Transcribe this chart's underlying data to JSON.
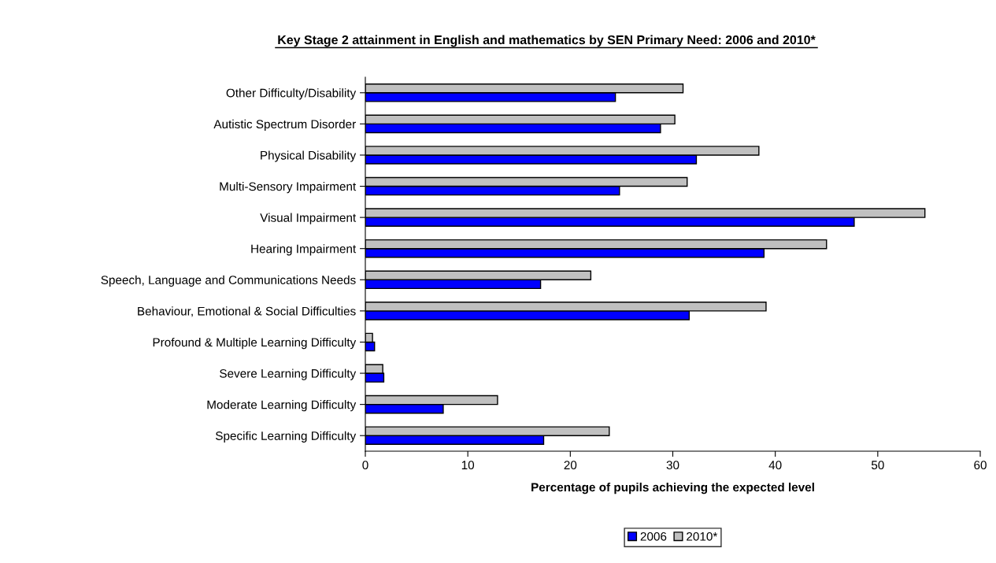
{
  "chart_data": {
    "type": "bar",
    "orientation": "horizontal",
    "title": "Key Stage 2 attainment in English and mathematics by SEN Primary Need: 2006 and 2010*",
    "xlabel": "Percentage of pupils achieving the expected level",
    "categories": [
      "Other Difficulty/Disability",
      "Autistic Spectrum Disorder",
      "Physical Disability",
      "Multi-Sensory Impairment",
      "Visual Impairment",
      "Hearing Impairment",
      "Speech, Language and Communications Needs",
      "Behaviour, Emotional & Social Difficulties",
      "Profound & Multiple Learning Difficulty",
      "Severe Learning Difficulty",
      "Moderate Learning Difficulty",
      "Specific Learning Difficulty"
    ],
    "series": [
      {
        "name": "2006",
        "color": "#0000ff",
        "values": [
          24.4,
          28.8,
          32.3,
          24.8,
          47.7,
          38.9,
          17.1,
          31.6,
          0.9,
          1.8,
          7.6,
          17.4
        ]
      },
      {
        "name": "2010*",
        "color": "#c0c0c0",
        "values": [
          31.0,
          30.2,
          38.4,
          31.4,
          54.6,
          45.0,
          22.0,
          39.1,
          0.7,
          1.7,
          12.9,
          23.8
        ]
      }
    ],
    "xlim": [
      0,
      60
    ],
    "xticks": [
      0,
      10,
      20,
      30,
      40,
      50,
      60
    ],
    "grid": false,
    "legend": "bottom"
  }
}
